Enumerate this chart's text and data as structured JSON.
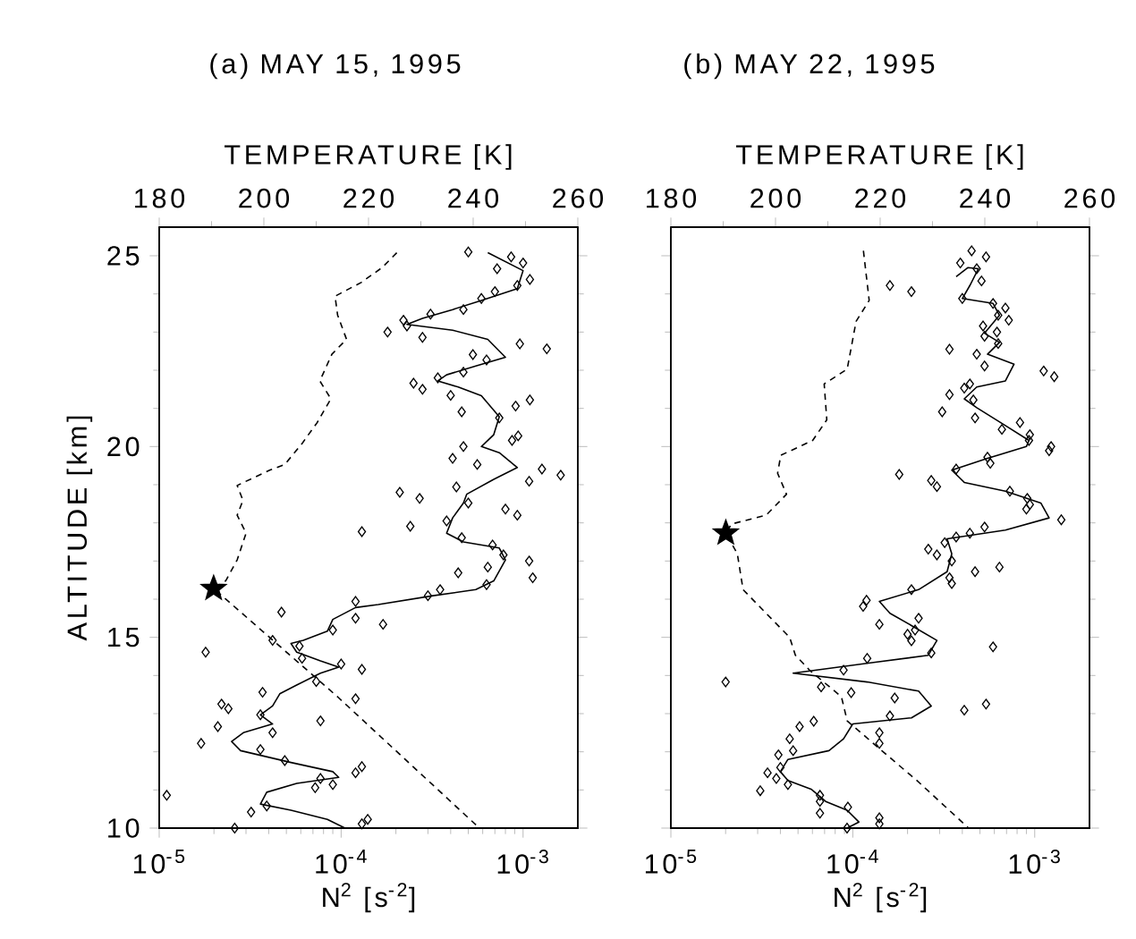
{
  "chart_data": [
    {
      "type": "scatter",
      "title": "(a) MAY 15, 1995",
      "xlabel": "N$^{2}$ [s$^{-2}$]",
      "x2label": "TEMPERATURE [K]",
      "ylabel": "ALTITUDE [km]",
      "log": "x",
      "xlim": [
        1e-05,
        0.002
      ],
      "xticks": [
        {
          "value": 1e-05,
          "label": "10$^{-5}$"
        },
        {
          "value": 0.0001,
          "label": "10$^{-4}$"
        },
        {
          "value": 0.001,
          "label": "10$^{-3}$"
        }
      ],
      "x2lim": [
        180,
        260
      ],
      "x2ticks": [
        180,
        200,
        220,
        240,
        260
      ],
      "ylim": [
        10,
        25.75
      ],
      "yticks": [
        10,
        15,
        20,
        25
      ],
      "series": [
        {
          "marker": "diamond",
          "color": "#000000",
          "x": [
            0.0005,
            0.00086,
            0.001,
            0.00072,
            0.00109,
            0.00093,
            0.0007,
            0.00059,
            0.00047,
            0.00031,
            0.00022,
            0.00023,
            0.00018,
            0.00028,
            0.00096,
            0.00135,
            0.00053,
            0.00063,
            0.00047,
            0.00034,
            0.00025,
            0.00028,
            0.0004,
            0.00046,
            0.00091,
            0.00109,
            0.00074,
            0.00094,
            0.00087,
            0.00047,
            0.00041,
            0.00056,
            0.00127,
            0.00161,
            0.00108,
            0.00043,
            0.00021,
            0.00027,
            0.0005,
            0.0008,
            0.00093,
            0.00038,
            0.00024,
            0.00013,
            0.00046,
            0.00068,
            0.00078,
            0.00108,
            0.00064,
            0.00044,
            0.00113,
            0.00063,
            0.00035,
            0.0003,
            0.00012,
            0.00012,
            4.7e-05,
            0.00017,
            9e-05,
            4.2e-05,
            5.9e-05,
            1.8e-05,
            6.1e-05,
            0.0001,
            0.00013,
            7.3e-05,
            3.7e-05,
            0.00012,
            2.2e-05,
            2.4e-05,
            7.7e-05,
            2.1e-05,
            3.6e-05,
            4.2e-05,
            1.7e-05,
            3.6e-05,
            4.9e-05,
            0.00012,
            0.00013,
            7.7e-05,
            9e-05,
            7.2e-05,
            3.9e-05,
            3.2e-05,
            0.00013,
            0.00014,
            1.1e-05,
            2.6e-05
          ],
          "values": [
            25.1,
            24.97,
            24.81,
            24.66,
            24.38,
            24.22,
            24.06,
            23.88,
            23.59,
            23.47,
            23.31,
            23.16,
            23.0,
            22.86,
            22.69,
            22.56,
            22.41,
            22.27,
            21.95,
            21.8,
            21.66,
            21.5,
            21.34,
            20.91,
            21.06,
            21.22,
            20.75,
            20.28,
            20.16,
            20.0,
            19.69,
            19.53,
            19.41,
            19.25,
            19.09,
            18.94,
            18.8,
            18.64,
            18.52,
            18.36,
            18.2,
            18.05,
            17.91,
            17.77,
            17.61,
            17.42,
            17.16,
            17.0,
            16.84,
            16.69,
            16.56,
            16.38,
            16.25,
            16.09,
            15.94,
            15.5,
            15.66,
            15.34,
            15.19,
            14.92,
            14.77,
            14.61,
            14.45,
            14.3,
            14.16,
            13.84,
            13.56,
            13.39,
            13.25,
            13.13,
            12.81,
            12.66,
            12.97,
            12.5,
            12.22,
            12.06,
            11.77,
            11.45,
            11.61,
            11.3,
            11.14,
            11.06,
            10.58,
            10.42,
            10.11,
            10.23,
            10.86,
            10.0
          ]
        },
        {
          "type": "line",
          "line_style": "solid",
          "color": "#000000",
          "x": [
            0.00064,
            0.001,
            0.00093,
            0.00059,
            0.00041,
            0.00028,
            0.00023,
            0.00041,
            0.00064,
            0.0008,
            0.00055,
            0.00038,
            0.00034,
            0.00044,
            0.00059,
            0.00074,
            0.00069,
            0.00059,
            0.00074,
            0.00093,
            0.00069,
            0.00049,
            0.00047,
            0.00041,
            0.00038,
            0.00047,
            0.00074,
            0.0008,
            0.00069,
            0.00055,
            0.00032,
            0.00016,
            0.00012,
            9e-05,
            8.4e-05,
            6.2e-05,
            5.3e-05,
            5.7e-05,
            7.7e-05,
            9.7e-05,
            7.7e-05,
            5.7e-05,
            4.6e-05,
            4.2e-05,
            3.6e-05,
            4.2e-05,
            2.9e-05,
            2.5e-05,
            2.8e-05,
            5.3e-05,
            9e-05,
            9.7e-05,
            5.7e-05,
            3.9e-05,
            3.6e-05,
            5.3e-05,
            8.4e-05,
            0.000105
          ],
          "values": [
            25.08,
            24.61,
            24.14,
            23.83,
            23.59,
            23.36,
            23.2,
            23.05,
            22.81,
            22.34,
            22.11,
            21.88,
            21.72,
            21.56,
            21.33,
            20.78,
            20.31,
            20.0,
            19.84,
            19.45,
            19.14,
            18.75,
            18.52,
            18.13,
            17.73,
            17.5,
            17.34,
            17.03,
            16.48,
            16.25,
            16.09,
            15.86,
            15.78,
            15.47,
            15.16,
            14.92,
            14.84,
            14.61,
            14.38,
            14.22,
            14.06,
            13.75,
            13.52,
            13.2,
            12.97,
            12.73,
            12.5,
            12.27,
            12.03,
            11.72,
            11.48,
            11.33,
            11.17,
            10.94,
            10.63,
            10.47,
            10.23,
            10.0
          ]
        },
        {
          "type": "line",
          "line_style": "dashed",
          "axis": "x2",
          "color": "#000000",
          "x": [
            225.4,
            222.6,
            218.6,
            213.6,
            214.1,
            215.8,
            213.0,
            210.7,
            212.8,
            210.2,
            207.3,
            204.0,
            201.1,
            194.9,
            196.0,
            194.9,
            196.6,
            194.9,
            192.7,
            190.4,
            214.1,
            241.2
          ],
          "values": [
            25.08,
            24.69,
            24.3,
            23.94,
            23.44,
            22.81,
            22.42,
            21.72,
            21.25,
            20.63,
            20.08,
            19.53,
            19.38,
            18.98,
            18.59,
            18.2,
            17.73,
            17.03,
            16.48,
            16.28,
            13.44,
            10.0
          ]
        },
        {
          "marker": "star",
          "axis": "x2",
          "color": "#000000",
          "x": [
            190.4
          ],
          "values": [
            16.28
          ]
        }
      ]
    },
    {
      "type": "scatter",
      "title": "(b) MAY 22, 1995",
      "xlabel": "N$^{2}$ [s$^{-2}$]",
      "x2label": "TEMPERATURE [K]",
      "log": "x",
      "tick_labels": "x",
      "xlim": [
        1e-05,
        0.002
      ],
      "xticks": [
        {
          "value": 1e-05,
          "label": "10$^{-5}$"
        },
        {
          "value": 0.0001,
          "label": "10$^{-4}$"
        },
        {
          "value": 0.001,
          "label": "10$^{-3}$"
        }
      ],
      "x2lim": [
        180,
        260
      ],
      "x2ticks": [
        180,
        200,
        220,
        240,
        260
      ],
      "ylim": [
        10,
        25.75
      ],
      "yticks": [
        10,
        15,
        20,
        25
      ],
      "series": [
        {
          "marker": "diamond",
          "color": "#000000",
          "x": [
            0.00045,
            0.00039,
            0.00054,
            0.00048,
            0.00051,
            0.00016,
            0.00021,
            0.0004,
            0.00059,
            0.00069,
            0.00063,
            0.00072,
            0.00052,
            0.00062,
            0.00053,
            0.00063,
            0.00034,
            0.00048,
            0.00053,
            0.00112,
            0.00128,
            0.00044,
            0.00041,
            0.00034,
            0.00046,
            0.00031,
            0.00047,
            0.00083,
            0.00066,
            0.00094,
            0.00093,
            0.00123,
            0.0012,
            0.00055,
            0.00057,
            0.00037,
            0.00018,
            0.00027,
            0.00029,
            0.00073,
            0.00091,
            0.00094,
            0.0009,
            0.0014,
            0.00053,
            0.00044,
            0.00037,
            0.00032,
            0.00026,
            0.00029,
            0.00035,
            0.00064,
            0.00047,
            0.00034,
            0.00035,
            0.00021,
            0.000119,
            0.000114,
            0.00014,
            0.00023,
            0.00022,
            0.0002,
            0.00021,
            0.00027,
            0.00059,
            0.00012,
            8.9e-05,
            2e-05,
            6.7e-05,
            9.8e-05,
            0.00017,
            0.00041,
            0.00054,
            0.00016,
            6.1e-05,
            5.1e-05,
            0.00014,
            4.5e-05,
            4.7e-05,
            0.00014,
            3.9e-05,
            3.4e-05,
            4e-05,
            3.8e-05,
            4.4e-05,
            3.1e-05,
            6.6e-05,
            6.6e-05,
            9.4e-05,
            6.6e-05,
            0.00014,
            0.00014,
            9.3e-05
          ],
          "values": [
            25.13,
            24.81,
            24.97,
            24.66,
            24.34,
            24.22,
            24.06,
            23.88,
            23.75,
            23.63,
            23.44,
            23.31,
            23.16,
            23.0,
            22.89,
            22.7,
            22.55,
            22.42,
            22.11,
            21.98,
            21.83,
            21.64,
            21.53,
            21.36,
            21.22,
            20.91,
            20.75,
            20.63,
            20.45,
            20.31,
            20.16,
            20.0,
            19.89,
            19.72,
            19.56,
            19.41,
            19.27,
            19.11,
            18.95,
            18.83,
            18.64,
            18.48,
            18.36,
            18.08,
            17.89,
            17.73,
            17.63,
            17.48,
            17.31,
            17.16,
            17.0,
            16.84,
            16.72,
            16.56,
            16.41,
            16.25,
            15.97,
            15.81,
            15.34,
            15.5,
            15.19,
            15.08,
            14.91,
            14.59,
            14.75,
            14.45,
            14.14,
            13.83,
            13.7,
            13.55,
            13.41,
            13.09,
            13.25,
            12.94,
            12.8,
            12.66,
            12.5,
            12.34,
            12.03,
            12.22,
            11.92,
            11.45,
            11.59,
            11.3,
            11.14,
            10.98,
            10.86,
            10.7,
            10.55,
            10.39,
            10.27,
            10.11,
            10.0
          ]
        },
        {
          "type": "line",
          "line_style": "solid",
          "color": "#000000",
          "x": [
            0.00037,
            0.00043,
            0.00049,
            0.00044,
            0.0004,
            0.00059,
            0.00064,
            0.00053,
            0.00064,
            0.00055,
            0.00077,
            0.00069,
            0.00048,
            0.00041,
            0.00048,
            0.00069,
            0.00093,
            0.0009,
            0.00055,
            0.00035,
            0.00041,
            0.00069,
            0.00108,
            0.0012,
            0.00069,
            0.00033,
            0.00035,
            0.00033,
            0.00023,
            0.00014,
            0.00016,
            0.00021,
            0.00029,
            0.00026,
            0.00013,
            4.7e-05,
            0.00012,
            0.00023,
            0.00027,
            0.00021,
            0.0001,
            8.9e-05,
            7.4e-05,
            4.4e-05,
            4e-05,
            4.4e-05,
            5.9e-05,
            7.1e-05,
            9.3e-05,
            0.000108,
            9.3e-05
          ],
          "values": [
            24.45,
            24.69,
            24.66,
            24.22,
            23.88,
            23.75,
            23.44,
            22.97,
            22.73,
            22.42,
            22.16,
            21.72,
            21.56,
            21.25,
            21.02,
            20.55,
            20.16,
            20.0,
            19.69,
            19.38,
            19.06,
            18.83,
            18.52,
            18.13,
            17.81,
            17.58,
            17.19,
            16.72,
            16.25,
            15.94,
            15.63,
            15.31,
            14.92,
            14.53,
            14.34,
            14.06,
            13.83,
            13.59,
            13.2,
            12.89,
            12.73,
            12.34,
            12.03,
            11.8,
            11.48,
            11.25,
            11.02,
            10.7,
            10.47,
            10.16,
            10.0
          ]
        },
        {
          "type": "line",
          "line_style": "dashed",
          "axis": "x2",
          "color": "#000000",
          "x": [
            216.8,
            217.9,
            215.4,
            213.7,
            209.3,
            209.8,
            207.1,
            201.0,
            200.4,
            202.1,
            198.2,
            191.6,
            190.5,
            192.7,
            193.8,
            198.2,
            202.7,
            203.8,
            206.5,
            212.6,
            213.7,
            220.3,
            227.0,
            236.9
          ],
          "values": [
            25.13,
            23.83,
            23.28,
            22.03,
            21.64,
            20.7,
            20.16,
            19.77,
            19.3,
            18.75,
            18.2,
            17.97,
            17.73,
            17.19,
            16.25,
            15.63,
            15.0,
            14.53,
            14.14,
            13.44,
            12.81,
            12.03,
            11.25,
            10.0
          ]
        },
        {
          "marker": "star",
          "axis": "x2",
          "color": "#000000",
          "x": [
            190.5
          ],
          "values": [
            17.73
          ]
        }
      ]
    }
  ]
}
